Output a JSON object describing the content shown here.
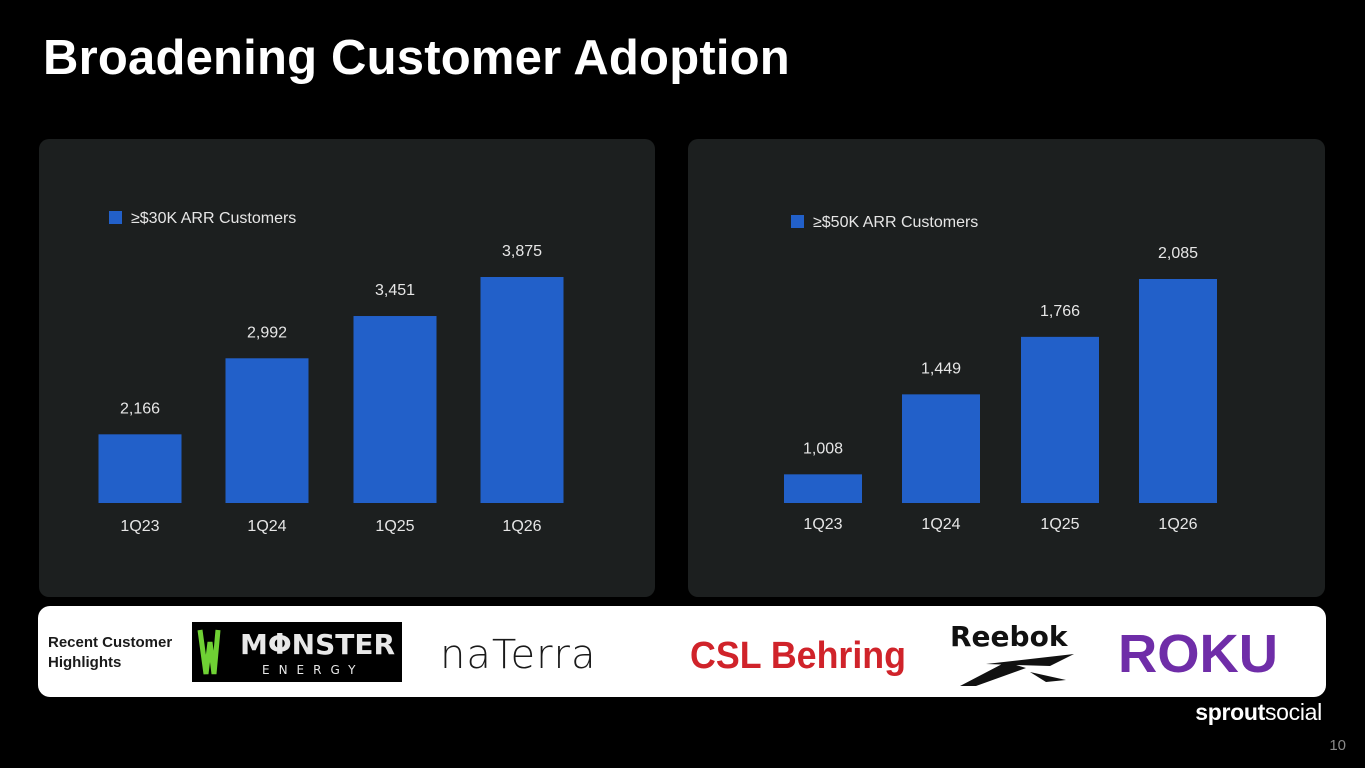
{
  "slide": {
    "title": "Broadening Customer Adoption",
    "page_number": "10"
  },
  "colors": {
    "bar": "#2260c9",
    "panel": "#1c1f1f",
    "background": "#000000",
    "label": "#e6e6e6"
  },
  "chart_data": [
    {
      "type": "bar",
      "title": "",
      "legend": "≥$30K ARR Customers",
      "legend_position": "top-left",
      "categories": [
        "1Q23",
        "1Q24",
        "1Q25",
        "1Q26"
      ],
      "series": [
        {
          "name": "≥$30K ARR Customers",
          "values": [
            2166,
            2992,
            3451,
            3875
          ]
        }
      ],
      "value_labels": [
        "2,166",
        "2,992",
        "3,451",
        "3,875"
      ],
      "ylim": [
        1420,
        3875
      ],
      "grid": false
    },
    {
      "type": "bar",
      "title": "",
      "legend": "≥$50K ARR Customers",
      "legend_position": "top-left",
      "categories": [
        "1Q23",
        "1Q24",
        "1Q25",
        "1Q26"
      ],
      "series": [
        {
          "name": "≥$50K ARR Customers",
          "values": [
            1008,
            1449,
            1766,
            2085
          ]
        }
      ],
      "value_labels": [
        "1,008",
        "1,449",
        "1,766",
        "2,085"
      ],
      "ylim": [
        850,
        2085
      ],
      "grid": false
    }
  ],
  "customers": {
    "label": "Recent Customer Highlights",
    "logos": [
      {
        "name": "Monster Energy",
        "icon": "monster-energy-logo"
      },
      {
        "name": "Naterra",
        "icon": "naterra-logo"
      },
      {
        "name": "CSL Behring",
        "icon": "csl-behring-logo"
      },
      {
        "name": "Reebok",
        "icon": "reebok-logo"
      },
      {
        "name": "Roku",
        "icon": "roku-logo"
      }
    ]
  },
  "brand": {
    "part1": "sprout",
    "part2": "social"
  }
}
